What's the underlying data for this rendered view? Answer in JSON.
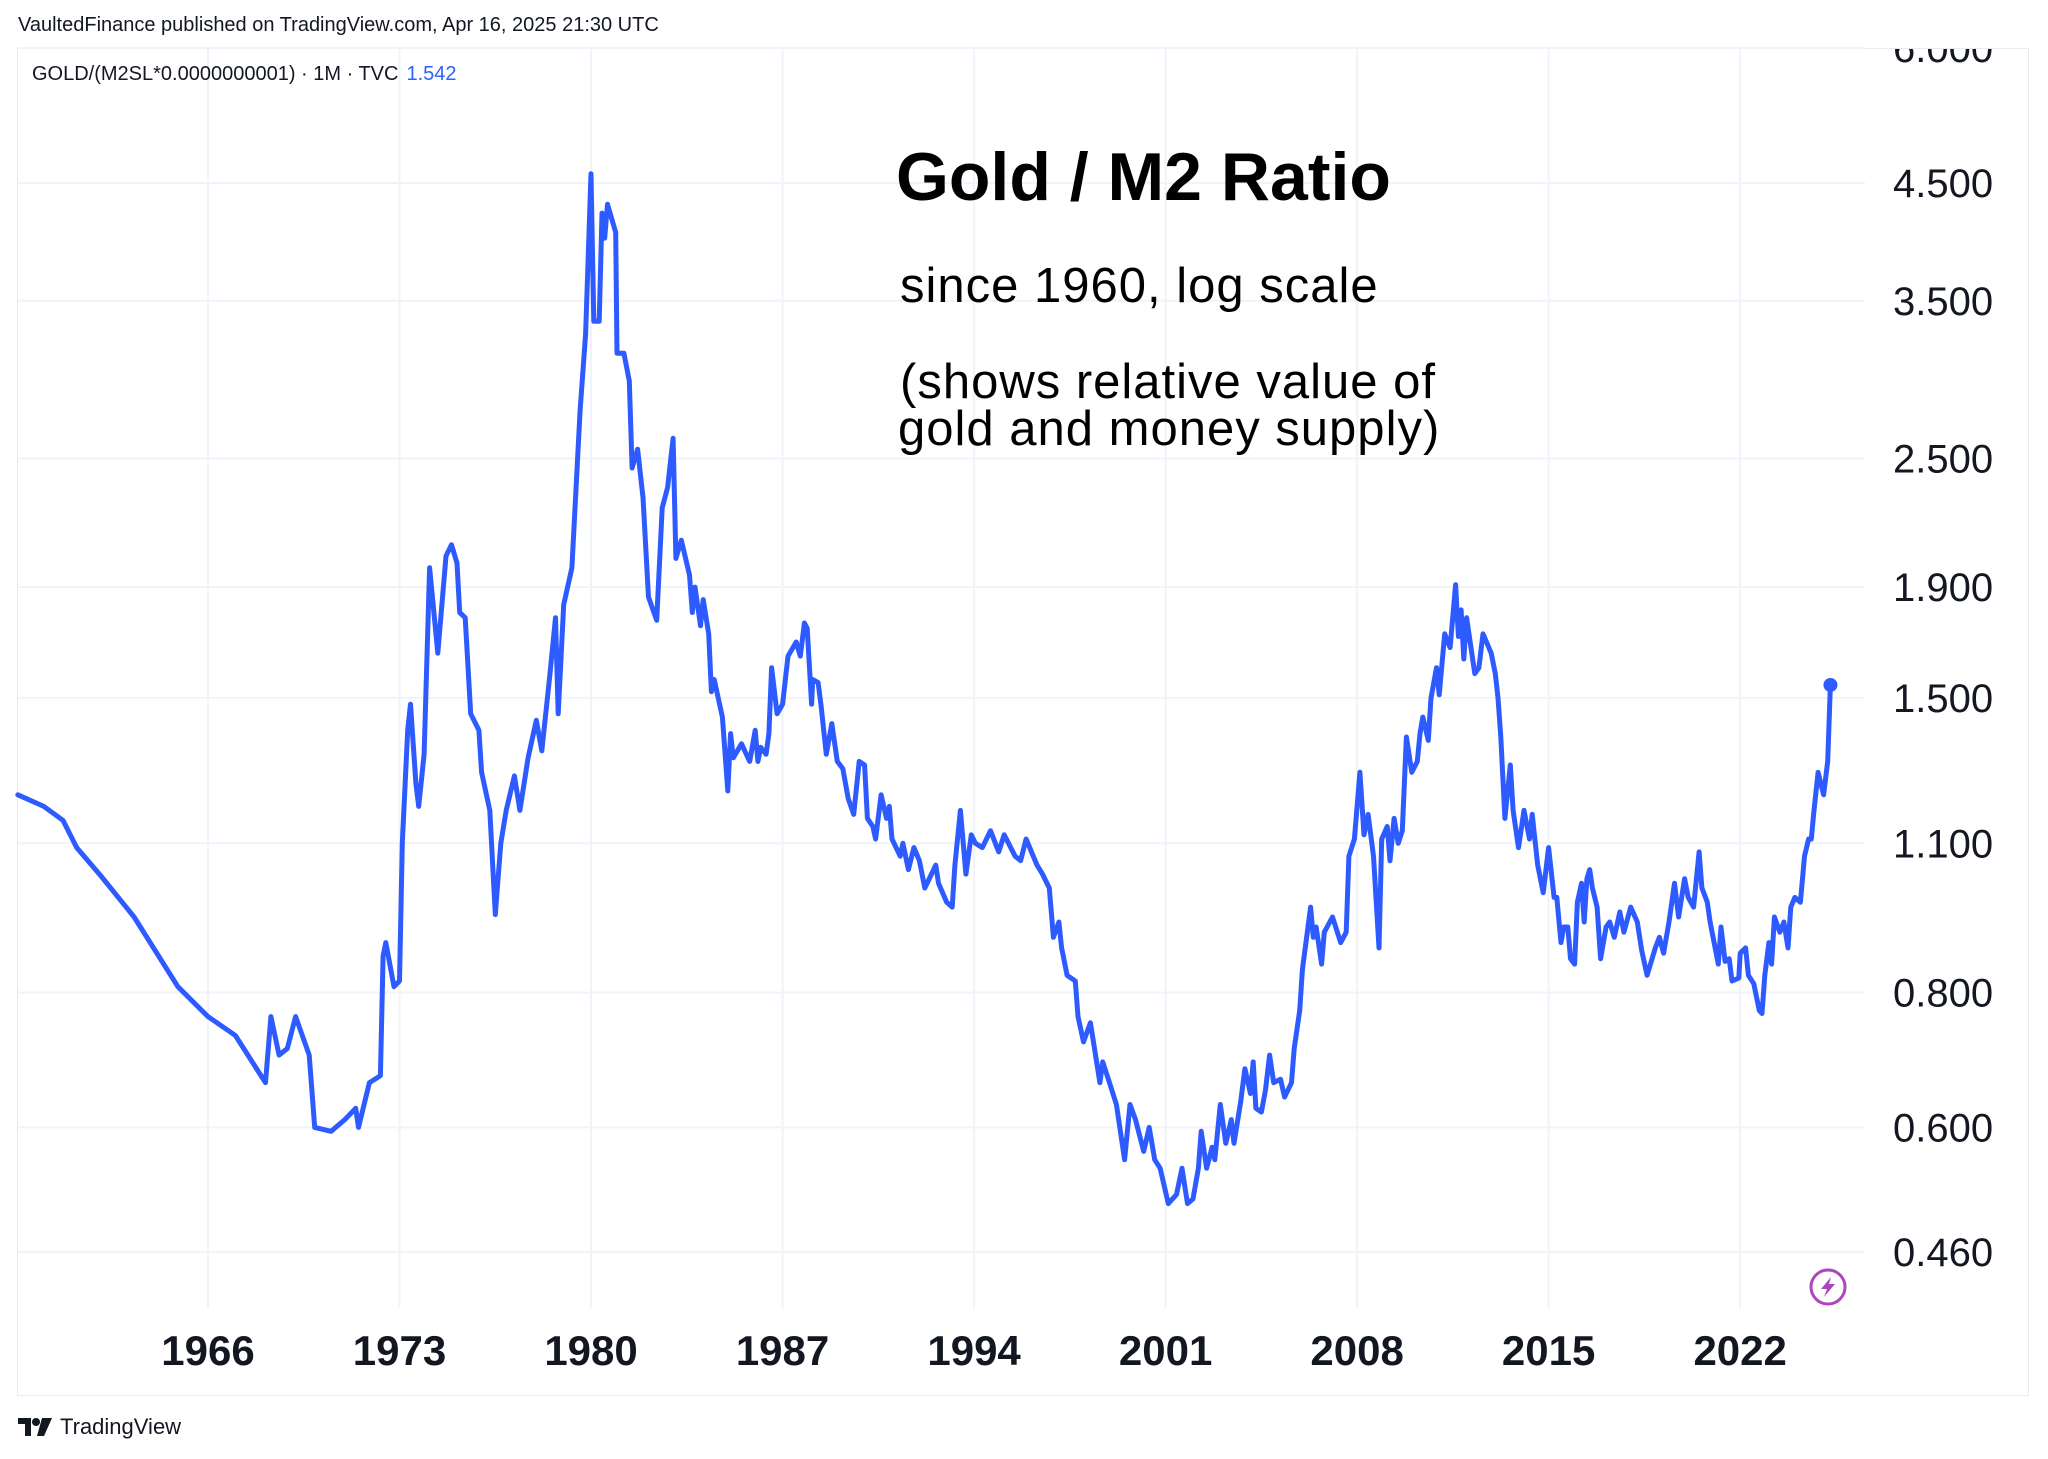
{
  "header": {
    "published": "VaultedFinance published on TradingView.com, Apr 16, 2025 21:30 UTC"
  },
  "legend": {
    "symbol": "GOLD/(M2SL*0.0000000001) · 1M · TVC",
    "last_value": "1.542"
  },
  "annotations": {
    "title": "Gold / M2 Ratio",
    "subtitle": "since 1960, log scale",
    "note_line1": "(shows relative value of",
    "note_line2": "gold and money supply)"
  },
  "footer": {
    "brand": "TradingView",
    "logo_icon": "tradingview-logo-icon"
  },
  "icons": {
    "lightning": "lightning-bolt-icon"
  },
  "colors": {
    "line": "#2e5bff",
    "last_value": "#2962ff",
    "grid": "#f0f3fa",
    "lightning": "#ab47bc"
  },
  "chart_data": {
    "type": "line",
    "y_scale": "log",
    "grid": true,
    "x_ticks": [
      "1966",
      "1973",
      "1980",
      "1987",
      "1994",
      "2001",
      "2008",
      "2015",
      "2022"
    ],
    "y_ticks": [
      "6.000",
      "4.500",
      "3.500",
      "2.500",
      "1.900",
      "1.500",
      "1.100",
      "0.800",
      "0.600",
      "0.460"
    ],
    "xlim": [
      1959.0,
      2027.6
    ],
    "ylim": [
      0.43,
      6.0
    ],
    "series": [
      {
        "x": [
          1959.05,
          1960.0,
          1960.7,
          1961.2,
          1962.1,
          1963.3,
          1964.9,
          1966.0,
          1967.0,
          1968.1,
          1968.3,
          1968.6,
          1968.9,
          1969.2,
          1969.7,
          1969.9,
          1970.5,
          1971.0,
          1971.4,
          1971.5,
          1971.9,
          1972.3,
          1972.4,
          1972.5,
          1972.8,
          1973.0,
          1973.1,
          1973.3,
          1973.4,
          1973.6,
          1973.7,
          1973.9,
          1974.1,
          1974.4,
          1974.7,
          1974.9,
          1975.1,
          1975.2,
          1975.4,
          1975.6,
          1975.9,
          1976.0,
          1976.3,
          1976.5,
          1976.7,
          1976.9,
          1977.2,
          1977.4,
          1977.7,
          1978.0,
          1978.2,
          1978.5,
          1978.7,
          1978.8,
          1979.0,
          1979.3,
          1979.6,
          1979.8,
          1980.0,
          1980.1,
          1980.3,
          1980.4,
          1980.5,
          1980.6,
          1980.9,
          1980.95,
          1981.2,
          1981.4,
          1981.5,
          1981.7,
          1981.9,
          1982.1,
          1982.4,
          1982.6,
          1982.8,
          1983.0,
          1983.1,
          1983.3,
          1983.6,
          1983.7,
          1983.8,
          1984.0,
          1984.1,
          1984.3,
          1984.4,
          1984.5,
          1984.8,
          1985.0,
          1985.1,
          1985.2,
          1985.5,
          1985.8,
          1986.0,
          1986.1,
          1986.2,
          1986.4,
          1986.5,
          1986.6,
          1986.8,
          1987.0,
          1987.2,
          1987.5,
          1987.65,
          1987.8,
          1987.9,
          1988.06,
          1988.1,
          1988.3,
          1988.4,
          1988.6,
          1988.8,
          1989.0,
          1989.2,
          1989.4,
          1989.6,
          1989.8,
          1990.0,
          1990.1,
          1990.3,
          1990.4,
          1990.6,
          1990.8,
          1990.9,
          1991.0,
          1991.3,
          1991.4,
          1991.6,
          1991.8,
          1992.0,
          1992.2,
          1992.6,
          1992.7,
          1993.0,
          1993.2,
          1993.3,
          1993.5,
          1993.7,
          1993.9,
          1994.05,
          1994.3,
          1994.6,
          1994.9,
          1995.1,
          1995.5,
          1995.7,
          1995.9,
          1996.3,
          1996.5,
          1996.75,
          1996.9,
          1997.1,
          1997.2,
          1997.4,
          1997.7,
          1997.8,
          1998.0,
          1998.25,
          1998.4,
          1998.6,
          1998.7,
          1998.95,
          1999.2,
          1999.5,
          1999.7,
          1999.9,
          2000.2,
          2000.4,
          2000.6,
          2000.8,
          2001.1,
          2001.4,
          2001.6,
          2001.8,
          2002.0,
          2002.2,
          2002.3,
          2002.5,
          2002.7,
          2002.8,
          2003.0,
          2003.2,
          2003.4,
          2003.5,
          2003.75,
          2003.9,
          2004.1,
          2004.2,
          2004.3,
          2004.5,
          2004.65,
          2004.8,
          2004.95,
          2005.2,
          2005.35,
          2005.6,
          2005.7,
          2005.9,
          2006.0,
          2006.3,
          2006.4,
          2006.5,
          2006.7,
          2006.8,
          2007.1,
          2007.4,
          2007.6,
          2007.7,
          2007.9,
          2008.1,
          2008.25,
          2008.4,
          2008.6,
          2008.8,
          2008.9,
          2009.1,
          2009.2,
          2009.35,
          2009.5,
          2009.65,
          2009.8,
          2010.0,
          2010.2,
          2010.3,
          2010.4,
          2010.6,
          2010.7,
          2010.9,
          2011.0,
          2011.2,
          2011.4,
          2011.6,
          2011.7,
          2011.8,
          2011.9,
          2012.0,
          2012.3,
          2012.45,
          2012.6,
          2012.9,
          2013.05,
          2013.15,
          2013.25,
          2013.4,
          2013.6,
          2013.7,
          2013.9,
          2014.1,
          2014.3,
          2014.4,
          2014.6,
          2014.8,
          2015.0,
          2015.2,
          2015.3,
          2015.45,
          2015.55,
          2015.7,
          2015.8,
          2015.95,
          2016.05,
          2016.2,
          2016.3,
          2016.4,
          2016.5,
          2016.6,
          2016.77,
          2016.9,
          2017.1,
          2017.23,
          2017.4,
          2017.6,
          2017.75,
          2018.0,
          2018.24,
          2018.4,
          2018.6,
          2018.9,
          2019.05,
          2019.2,
          2019.4,
          2019.6,
          2019.75,
          2019.97,
          2020.1,
          2020.3,
          2020.5,
          2020.6,
          2020.8,
          2020.9,
          2021.2,
          2021.3,
          2021.45,
          2021.6,
          2021.7,
          2021.95,
          2022.0,
          2022.2,
          2022.3,
          2022.5,
          2022.7,
          2022.8,
          2022.9,
          2023.05,
          2023.15,
          2023.25,
          2023.45,
          2023.6,
          2023.75,
          2023.85,
          2024.0,
          2024.2,
          2024.35,
          2024.5,
          2024.6,
          2024.7,
          2024.85,
          2025.05,
          2025.2,
          2025.3
        ],
        "y": [
          1.22,
          1.19,
          1.155,
          1.09,
          1.025,
          0.94,
          0.81,
          0.76,
          0.73,
          0.66,
          0.76,
          0.7,
          0.71,
          0.76,
          0.7,
          0.6,
          0.595,
          0.61,
          0.625,
          0.6,
          0.66,
          0.67,
          0.865,
          0.89,
          0.81,
          0.82,
          1.1,
          1.4,
          1.48,
          1.25,
          1.19,
          1.33,
          1.98,
          1.65,
          2.03,
          2.08,
          2.0,
          1.8,
          1.78,
          1.45,
          1.4,
          1.28,
          1.18,
          0.945,
          1.1,
          1.18,
          1.27,
          1.18,
          1.32,
          1.43,
          1.34,
          1.58,
          1.78,
          1.45,
          1.83,
          1.98,
          2.77,
          3.26,
          4.59,
          3.35,
          3.35,
          4.22,
          4.0,
          4.3,
          4.05,
          3.13,
          3.13,
          2.95,
          2.45,
          2.55,
          2.3,
          1.86,
          1.77,
          2.25,
          2.35,
          2.61,
          2.02,
          2.1,
          1.95,
          1.8,
          1.9,
          1.75,
          1.85,
          1.72,
          1.52,
          1.56,
          1.44,
          1.23,
          1.39,
          1.32,
          1.36,
          1.31,
          1.4,
          1.31,
          1.35,
          1.33,
          1.39,
          1.6,
          1.45,
          1.48,
          1.64,
          1.69,
          1.64,
          1.76,
          1.74,
          1.48,
          1.56,
          1.55,
          1.48,
          1.33,
          1.42,
          1.31,
          1.29,
          1.21,
          1.17,
          1.31,
          1.3,
          1.16,
          1.14,
          1.11,
          1.22,
          1.16,
          1.19,
          1.11,
          1.07,
          1.1,
          1.04,
          1.09,
          1.06,
          1.0,
          1.05,
          1.01,
          0.97,
          0.96,
          1.05,
          1.18,
          1.03,
          1.12,
          1.1,
          1.09,
          1.13,
          1.08,
          1.12,
          1.07,
          1.06,
          1.11,
          1.05,
          1.03,
          1.0,
          0.9,
          0.93,
          0.88,
          0.83,
          0.82,
          0.76,
          0.72,
          0.75,
          0.71,
          0.66,
          0.69,
          0.66,
          0.63,
          0.56,
          0.63,
          0.61,
          0.57,
          0.6,
          0.56,
          0.55,
          0.51,
          0.52,
          0.55,
          0.51,
          0.515,
          0.55,
          0.595,
          0.55,
          0.575,
          0.56,
          0.63,
          0.58,
          0.61,
          0.58,
          0.635,
          0.68,
          0.645,
          0.69,
          0.625,
          0.62,
          0.65,
          0.7,
          0.66,
          0.665,
          0.64,
          0.66,
          0.71,
          0.77,
          0.84,
          0.96,
          0.9,
          0.92,
          0.85,
          0.91,
          0.94,
          0.89,
          0.91,
          1.07,
          1.11,
          1.28,
          1.12,
          1.17,
          1.07,
          0.88,
          1.11,
          1.14,
          1.06,
          1.16,
          1.1,
          1.13,
          1.38,
          1.28,
          1.31,
          1.39,
          1.44,
          1.37,
          1.5,
          1.6,
          1.51,
          1.72,
          1.67,
          1.91,
          1.71,
          1.81,
          1.63,
          1.78,
          1.58,
          1.6,
          1.72,
          1.65,
          1.58,
          1.5,
          1.38,
          1.16,
          1.3,
          1.18,
          1.09,
          1.18,
          1.11,
          1.17,
          1.05,
          0.99,
          1.09,
          0.98,
          0.98,
          0.89,
          0.92,
          0.92,
          0.86,
          0.85,
          0.97,
          1.01,
          0.93,
          1.02,
          1.04,
          1.0,
          0.96,
          0.86,
          0.92,
          0.93,
          0.9,
          0.95,
          0.91,
          0.96,
          0.93,
          0.875,
          0.83,
          0.88,
          0.9,
          0.87,
          0.93,
          1.01,
          0.94,
          1.02,
          0.98,
          0.96,
          1.08,
          1.0,
          0.97,
          0.93,
          0.85,
          0.92,
          0.855,
          0.86,
          0.82,
          0.825,
          0.87,
          0.88,
          0.83,
          0.815,
          0.77,
          0.765,
          0.83,
          0.89,
          0.85,
          0.94,
          0.91,
          0.93,
          0.88,
          0.96,
          0.98,
          0.97,
          1.07,
          1.11,
          1.11,
          1.18,
          1.28,
          1.22,
          1.31,
          1.542
        ]
      }
    ]
  }
}
